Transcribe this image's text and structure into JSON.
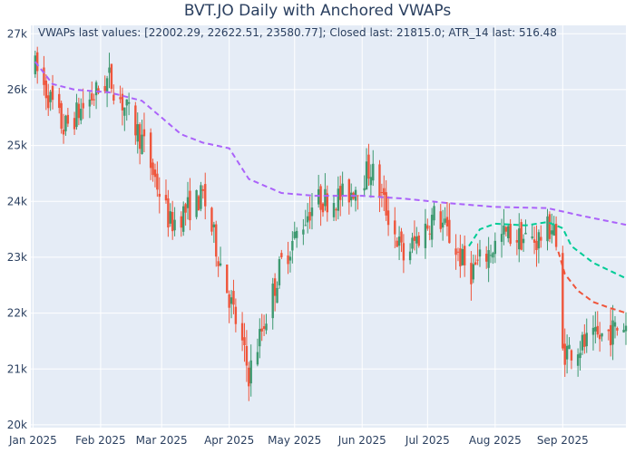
{
  "chart_data": {
    "type": "candlestick",
    "title": "BVT.JO Daily with Anchored VWAPs",
    "annotation": "VWAPs last values: [22002.29, 22622.51, 23580.77]; Closed last: 21815.0; ATR_14 last: 516.48",
    "x_ticks": [
      "Jan 2025",
      "Feb 2025",
      "Mar 2025",
      "Apr 2025",
      "May 2025",
      "Jun 2025",
      "Jul 2025",
      "Aug 2025",
      "Sep 2025"
    ],
    "y_ticks": [
      "20k",
      "21k",
      "22k",
      "23k",
      "24k",
      "25k",
      "26k",
      "27k"
    ],
    "ylim": [
      19950,
      27150
    ],
    "x_range": [
      "2024-12-31",
      "2025-09-30"
    ],
    "grid": true,
    "colors": {
      "plot_bg": "#e5ecf6",
      "grid": "#ffffff",
      "increasing": "#3d9970",
      "decreasing": "#ef553b",
      "vwap_1": "#ab63fa",
      "vwap_2": "#00cc96",
      "vwap_3": "#ef553b"
    },
    "candles_key_points": [
      {
        "date": "2025-01-02",
        "close": 26400
      },
      {
        "date": "2025-01-15",
        "close": 25300
      },
      {
        "date": "2025-02-05",
        "close": 26200
      },
      {
        "date": "2025-02-20",
        "close": 25100
      },
      {
        "date": "2025-03-05",
        "close": 23600
      },
      {
        "date": "2025-03-20",
        "close": 24100
      },
      {
        "date": "2025-04-07",
        "close": 21400
      },
      {
        "date": "2025-04-10",
        "close": 20900
      },
      {
        "date": "2025-04-25",
        "close": 22900
      },
      {
        "date": "2025-05-10",
        "close": 24000
      },
      {
        "date": "2025-05-25",
        "close": 24100
      },
      {
        "date": "2025-06-05",
        "close": 24600
      },
      {
        "date": "2025-06-20",
        "close": 23000
      },
      {
        "date": "2025-07-05",
        "close": 23800
      },
      {
        "date": "2025-07-20",
        "close": 22700
      },
      {
        "date": "2025-08-05",
        "close": 23400
      },
      {
        "date": "2025-08-20",
        "close": 23300
      },
      {
        "date": "2025-08-28",
        "close": 23600
      },
      {
        "date": "2025-09-01",
        "close": 21300
      },
      {
        "date": "2025-09-15",
        "close": 21500
      },
      {
        "date": "2025-09-30",
        "close": 21815
      }
    ],
    "series": [
      {
        "points": [
          [
            "2025-01-02",
            26500
          ],
          [
            "2025-01-10",
            26100
          ],
          [
            "2025-01-20",
            26000
          ],
          [
            "2025-02-05",
            25950
          ],
          [
            "2025-02-20",
            25800
          ],
          [
            "2025-03-01",
            25500
          ],
          [
            "2025-03-10",
            25200
          ],
          [
            "2025-03-20",
            25050
          ],
          [
            "2025-04-01",
            24950
          ],
          [
            "2025-04-10",
            24400
          ],
          [
            "2025-04-25",
            24150
          ],
          [
            "2025-05-10",
            24100
          ],
          [
            "2025-06-01",
            24100
          ],
          [
            "2025-06-20",
            24050
          ],
          [
            "2025-07-10",
            23970
          ],
          [
            "2025-08-01",
            23900
          ],
          [
            "2025-08-25",
            23880
          ],
          [
            "2025-09-10",
            23740
          ],
          [
            "2025-09-30",
            23580.77
          ]
        ]
      },
      {
        "points": [
          [
            "2025-07-20",
            23200
          ],
          [
            "2025-07-25",
            23500
          ],
          [
            "2025-08-01",
            23600
          ],
          [
            "2025-08-15",
            23570
          ],
          [
            "2025-08-25",
            23630
          ],
          [
            "2025-09-01",
            23520
          ],
          [
            "2025-09-05",
            23200
          ],
          [
            "2025-09-15",
            22900
          ],
          [
            "2025-09-30",
            22622.51
          ]
        ]
      },
      {
        "points": [
          [
            "2025-08-30",
            23100
          ],
          [
            "2025-09-02",
            22700
          ],
          [
            "2025-09-08",
            22400
          ],
          [
            "2025-09-15",
            22200
          ],
          [
            "2025-09-22",
            22100
          ],
          [
            "2025-09-30",
            22002.29
          ]
        ]
      }
    ]
  }
}
